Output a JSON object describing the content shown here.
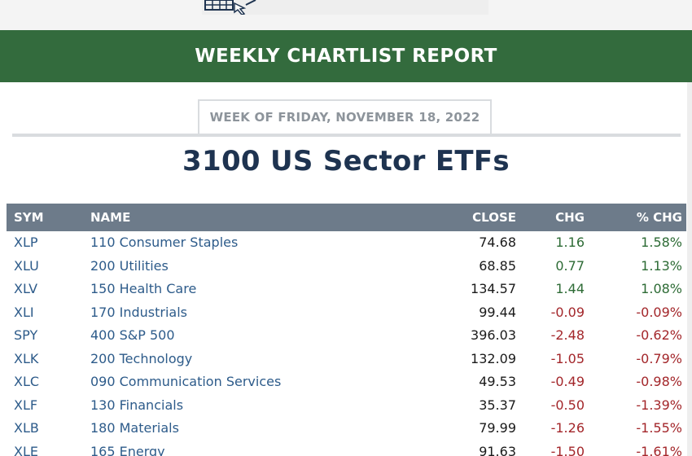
{
  "banner": {
    "title": "WEEKLY CHARTLIST REPORT"
  },
  "week_label": "WEEK OF FRIDAY, NOVEMBER 18, 2022",
  "list_title": "3100 US Sector ETFs",
  "table": {
    "headers": {
      "sym": "SYM",
      "name": "NAME",
      "close": "CLOSE",
      "chg": "CHG",
      "pct": "% CHG"
    },
    "rows": [
      {
        "sym": "XLP",
        "name": "110 Consumer Staples",
        "close": "74.68",
        "chg": "1.16",
        "pct": "1.58%",
        "dir": "pos"
      },
      {
        "sym": "XLU",
        "name": "200 Utilities",
        "close": "68.85",
        "chg": "0.77",
        "pct": "1.13%",
        "dir": "pos"
      },
      {
        "sym": "XLV",
        "name": "150 Health Care",
        "close": "134.57",
        "chg": "1.44",
        "pct": "1.08%",
        "dir": "pos"
      },
      {
        "sym": "XLI",
        "name": "170 Industrials",
        "close": "99.44",
        "chg": "-0.09",
        "pct": "-0.09%",
        "dir": "neg"
      },
      {
        "sym": "SPY",
        "name": "400 S&P 500",
        "close": "396.03",
        "chg": "-2.48",
        "pct": "-0.62%",
        "dir": "neg"
      },
      {
        "sym": "XLK",
        "name": "200 Technology",
        "close": "132.09",
        "chg": "-1.05",
        "pct": "-0.79%",
        "dir": "neg"
      },
      {
        "sym": "XLC",
        "name": "090 Communication Services",
        "close": "49.53",
        "chg": "-0.49",
        "pct": "-0.98%",
        "dir": "neg"
      },
      {
        "sym": "XLF",
        "name": "130 Financials",
        "close": "35.37",
        "chg": "-0.50",
        "pct": "-1.39%",
        "dir": "neg"
      },
      {
        "sym": "XLB",
        "name": "180 Materials",
        "close": "79.99",
        "chg": "-1.26",
        "pct": "-1.55%",
        "dir": "neg"
      },
      {
        "sym": "XLE",
        "name": "165 Energy",
        "close": "91.63",
        "chg": "-1.50",
        "pct": "-1.61%",
        "dir": "neg"
      }
    ]
  },
  "colors": {
    "banner_green": "#336b3d",
    "title_navy": "#1e3350",
    "header_slate": "#6d7b8a",
    "link_blue": "#2d5b8a",
    "positive_green": "#2d6b35",
    "negative_red": "#a3262a"
  },
  "icons": {
    "logo": "chart-grid-cursor-logo"
  }
}
